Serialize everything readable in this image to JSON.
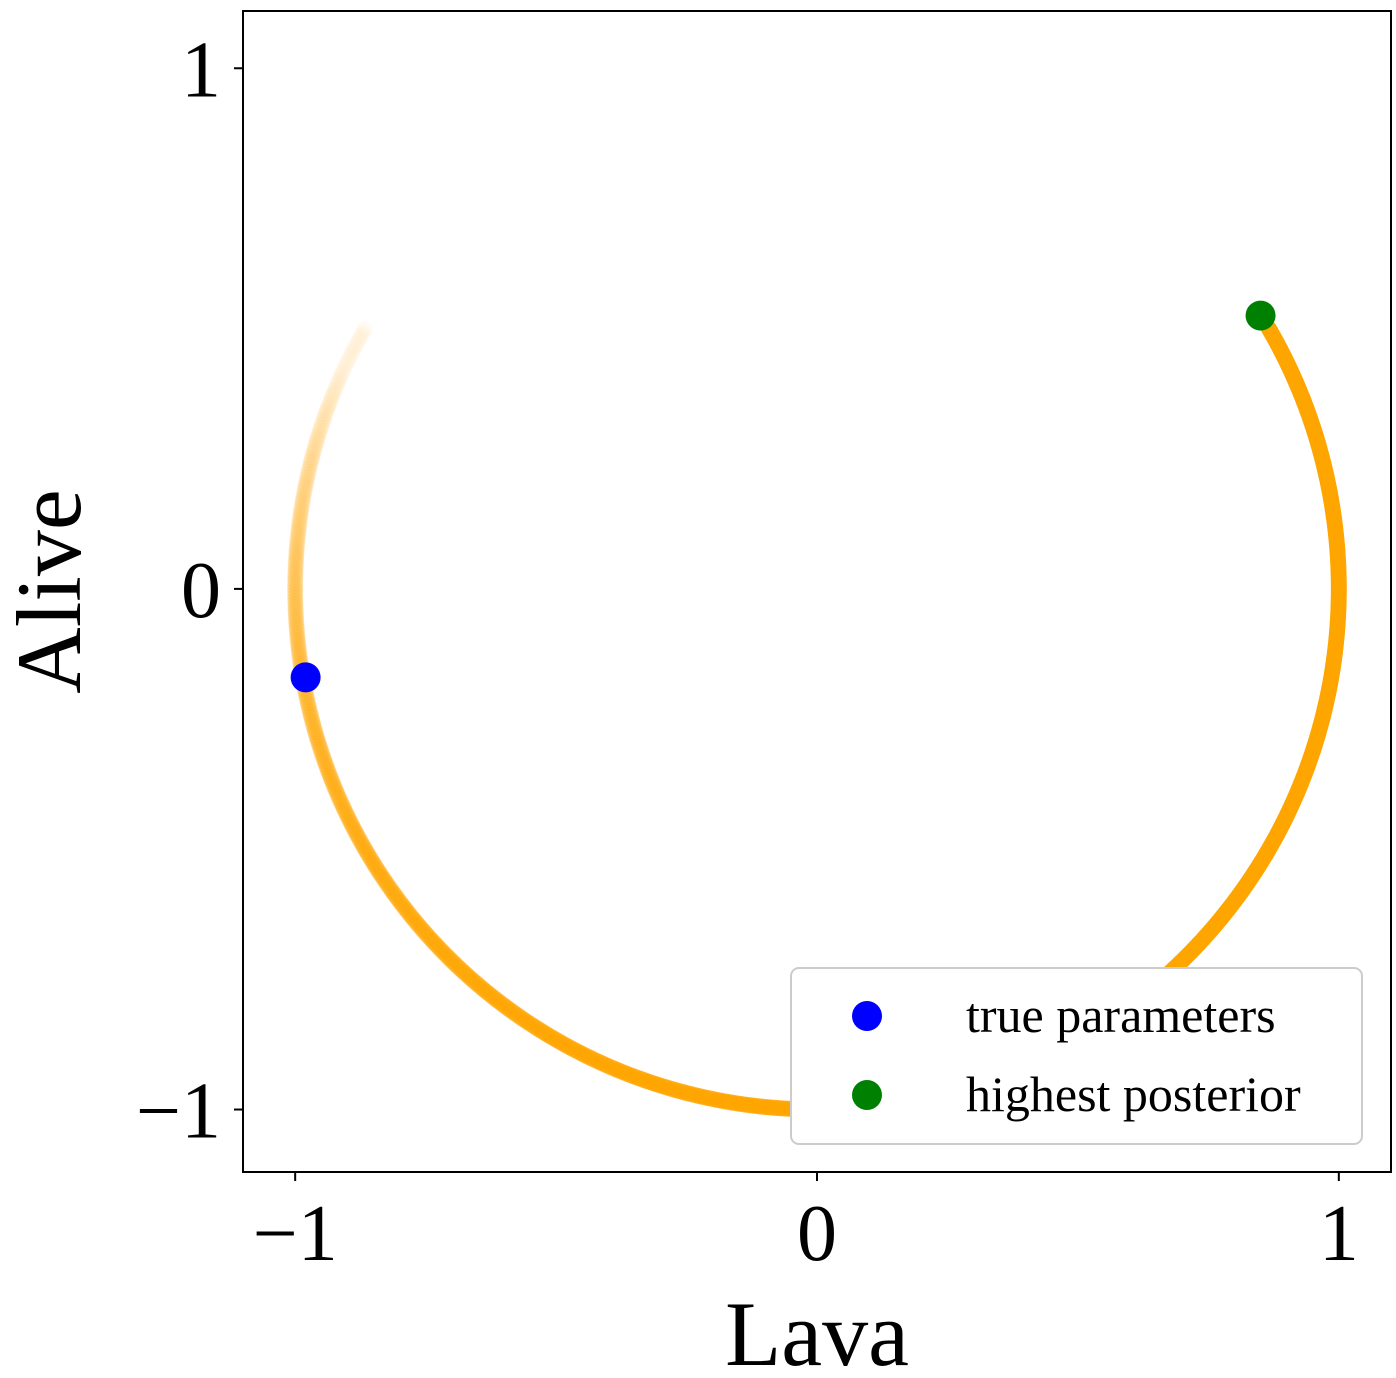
{
  "chart_data": {
    "type": "scatter",
    "xlabel": "Lava",
    "ylabel": "Alive",
    "xlim": [
      -1.1,
      1.1
    ],
    "ylim": [
      -1.12,
      1.11
    ],
    "xticks": [
      {
        "value": -1,
        "label": "−1"
      },
      {
        "value": 0,
        "label": "0"
      },
      {
        "value": 1,
        "label": "1"
      }
    ],
    "yticks": [
      {
        "value": -1,
        "label": "−1"
      },
      {
        "value": 0,
        "label": "0"
      },
      {
        "value": 1,
        "label": "1"
      }
    ],
    "grid": false,
    "legend_position": "lower-right",
    "samples": {
      "shape": "unit-circle-arc",
      "angle_start_deg": -210,
      "angle_end_deg": 30,
      "color": "#ffa500",
      "peak_angle_deg": 30
    },
    "series": [
      {
        "name": "true parameters",
        "color": "#0000ff",
        "points": [
          {
            "x": -0.98,
            "y": -0.17
          }
        ]
      },
      {
        "name": "highest posterior",
        "color": "#008000",
        "points": [
          {
            "x": 0.85,
            "y": 0.525
          }
        ]
      }
    ]
  }
}
